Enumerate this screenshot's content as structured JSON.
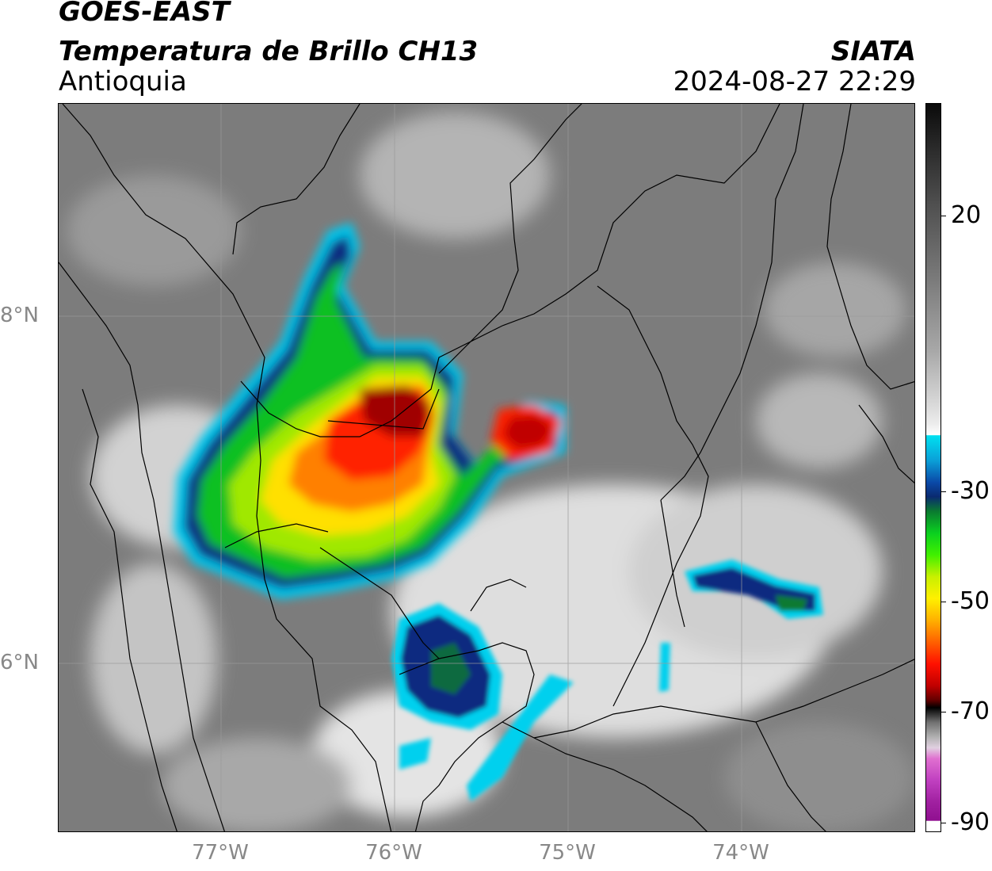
{
  "header": {
    "satellite": "GOES-EAST",
    "product": "Temperatura de Brillo CH13",
    "region": "Antioquia",
    "agency": "SIATA",
    "timestamp": "2024-08-27 22:29"
  },
  "map": {
    "lat_labels": [
      "8°N",
      "6°N"
    ],
    "lon_labels": [
      "77°W",
      "76°W",
      "75°W",
      "74°W"
    ]
  },
  "colorbar": {
    "labels": [
      "20",
      "-30",
      "-50",
      "-70",
      "-90"
    ]
  },
  "colors": {
    "coldest_core": "#b00000",
    "deep_convection": "#ff4000",
    "cloud_top": "#ffe000",
    "anvil_edge": "#00c000",
    "cirrus": "#0a2a80",
    "thin_cloud": "#00d8f0"
  }
}
